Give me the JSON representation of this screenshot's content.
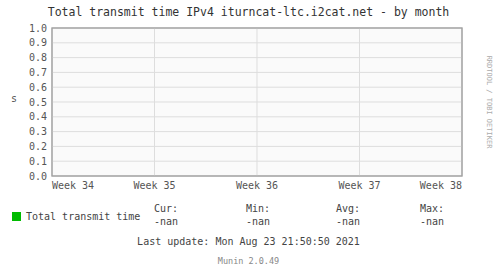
{
  "chart_data": {
    "type": "line",
    "title": "Total transmit time IPv4 iturncat-ltc.i2cat.net - by month",
    "y_label": "s",
    "categories": [
      "Week 34",
      "Week 35",
      "Week 36",
      "Week 37",
      "Week 38"
    ],
    "series": [
      {
        "name": "Total transmit time",
        "color": "#00bb00",
        "values": [
          null,
          null,
          null,
          null,
          null
        ]
      }
    ],
    "ylim": [
      0.0,
      1.0
    ],
    "yticks": [
      {
        "value": 0,
        "label": "0.0"
      },
      0.1,
      0.2,
      0.3,
      0.4,
      0.5,
      0.6,
      0.7,
      0.8,
      0.9,
      {
        "value": 1,
        "label": "1.0"
      }
    ],
    "grid": true,
    "legend": "bottom",
    "stats": [
      {
        "label": "Cur:",
        "value": "-nan"
      },
      {
        "label": "Min:",
        "value": "-nan"
      },
      {
        "label": "Avg:",
        "value": "-nan"
      },
      {
        "label": "Max:",
        "value": "-nan"
      }
    ],
    "annotations": [
      "Last update: Mon Aug 23 21:50:50 2021",
      "Munin 2.0.49",
      "RRDTOOL / TOBI OETIKER"
    ]
  }
}
